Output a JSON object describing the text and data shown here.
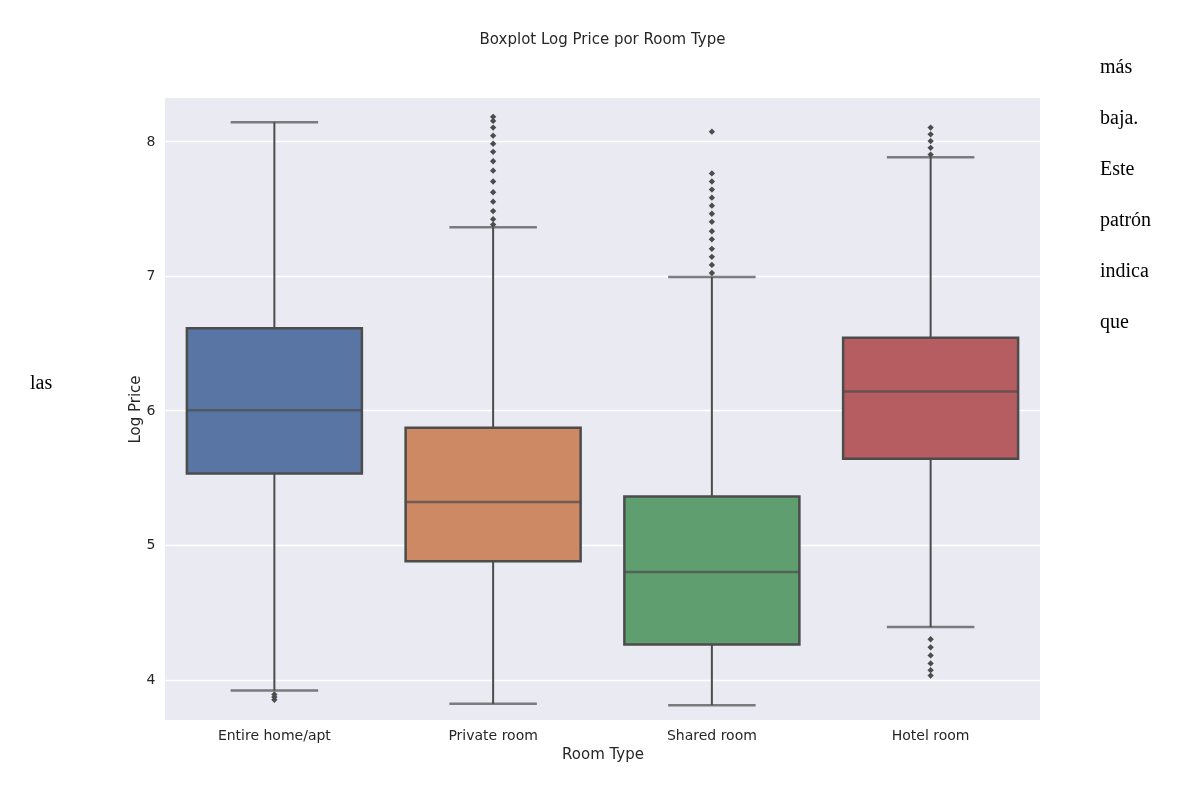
{
  "chart_data": {
    "type": "box",
    "title": "Boxplot Log Price por Room Type",
    "xlabel": "Room Type",
    "ylabel": "Log Price",
    "categories": [
      "Entire home/apt",
      "Private room",
      "Shared room",
      "Hotel room"
    ],
    "colors": [
      "#5975a4",
      "#cc8963",
      "#5f9e6e",
      "#b55d60"
    ],
    "boxes": [
      {
        "low": 3.92,
        "q1": 5.53,
        "median": 6.0,
        "q3": 6.61,
        "high": 8.14,
        "outliers": [
          3.89,
          3.87,
          3.85
        ]
      },
      {
        "low": 3.82,
        "q1": 4.88,
        "median": 5.32,
        "q3": 5.87,
        "high": 7.36,
        "outliers": [
          7.38,
          7.42,
          7.48,
          7.55,
          7.62,
          7.7,
          7.78,
          7.85,
          7.92,
          7.98,
          8.04,
          8.1,
          8.15,
          8.18
        ]
      },
      {
        "low": 3.81,
        "q1": 4.26,
        "median": 4.8,
        "q3": 5.36,
        "high": 6.99,
        "outliers": [
          7.02,
          7.08,
          7.14,
          7.2,
          7.27,
          7.33,
          7.4,
          7.46,
          7.52,
          7.58,
          7.64,
          7.7,
          7.76,
          8.07
        ]
      },
      {
        "low": 4.39,
        "q1": 5.64,
        "median": 6.14,
        "q3": 6.54,
        "high": 7.88,
        "outliers": [
          7.9,
          7.95,
          8.0,
          8.05,
          8.1,
          4.3,
          4.24,
          4.18,
          4.12,
          4.07,
          4.03
        ]
      }
    ],
    "ylim": [
      3.7,
      8.32
    ],
    "yticks": [
      4,
      5,
      6,
      7,
      8
    ],
    "grid": "y",
    "marker": "diamond",
    "annotations": [
      "más",
      "baja.",
      "Este",
      "patrón",
      "indica",
      "que",
      "las"
    ]
  }
}
